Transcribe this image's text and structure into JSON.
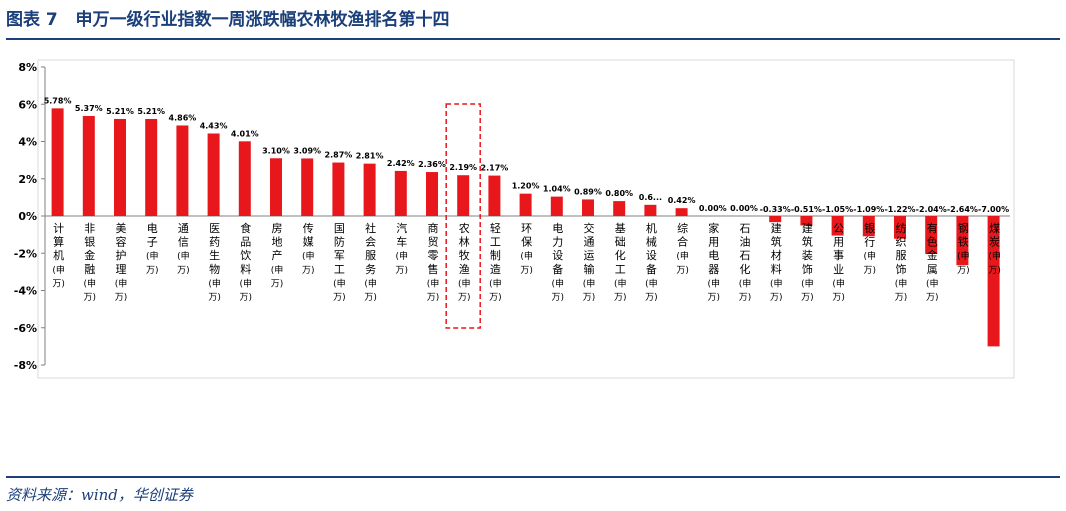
{
  "figure": {
    "title": "图表 7   申万一级行业指数一周涨跌幅农林牧渔排名第十四",
    "source": "资料来源：wind，华创证券"
  },
  "colors": {
    "bar": "#e8171c",
    "header": "#1b3f7a",
    "highlight_box": "#e8171c",
    "axis": "#808080",
    "text": "#000000"
  },
  "chart_data": {
    "type": "bar",
    "title": "",
    "xlabel": "",
    "ylabel": "",
    "ylim": [
      -8,
      8
    ],
    "yticks": [
      -8,
      -6,
      -4,
      -2,
      0,
      2,
      4,
      6,
      8
    ],
    "ytick_labels": [
      "-8%",
      "-6%",
      "-4%",
      "-2%",
      "0%",
      "2%",
      "4%",
      "6%",
      "8%"
    ],
    "grid": false,
    "legend": "none",
    "highlight": "农林牧渔(申万)",
    "categories": [
      "计算机(申万)",
      "非银金融(申万)",
      "美容护理(申万)",
      "电子(申万)",
      "通信(申万)",
      "医药生物(申万)",
      "食品饮料(申万)",
      "房地产(申万)",
      "传媒(申万)",
      "国防军工(申万)",
      "社会服务(申万)",
      "汽车(申万)",
      "商贸零售(申万)",
      "农林牧渔(申万)",
      "轻工制造(申万)",
      "环保(申万)",
      "电力设备(申万)",
      "交通运输(申万)",
      "基础化工(申万)",
      "机械设备(申万)",
      "综合(申万)",
      "家用电器(申万)",
      "石油石化(申万)",
      "建筑材料(申万)",
      "建筑装饰(申万)",
      "公用事业(申万)",
      "银行(申万)",
      "纺织服饰(申万)",
      "有色金属(申万)",
      "钢铁(申万)",
      "煤炭(申万)"
    ],
    "values": [
      5.78,
      5.37,
      5.21,
      5.21,
      4.86,
      4.43,
      4.01,
      3.1,
      3.09,
      2.87,
      2.81,
      2.42,
      2.36,
      2.19,
      2.17,
      1.2,
      1.04,
      0.89,
      0.8,
      0.6,
      0.42,
      0.0,
      0.0,
      -0.33,
      -0.51,
      -1.05,
      -1.09,
      -1.22,
      -2.04,
      -2.64,
      -7.0
    ],
    "data_labels": [
      "5.78%",
      "5.37%",
      "5.21%",
      "5.21%",
      "4.86%",
      "4.43%",
      "4.01%",
      "3.10%",
      "3.09%",
      "2.87%",
      "2.81%",
      "2.42%",
      "2.36%",
      "2.19%",
      "2.17%",
      "1.20%",
      "1.04%",
      "0.89%",
      "0.80%",
      "0.6...",
      "0.42%",
      "0.00%",
      "0.00%",
      "-0.33%",
      "-0.51%",
      "-1.05%",
      "-1.09%",
      "-1.22%",
      "-2.04%",
      "-2.64%",
      "-7.00%"
    ]
  }
}
